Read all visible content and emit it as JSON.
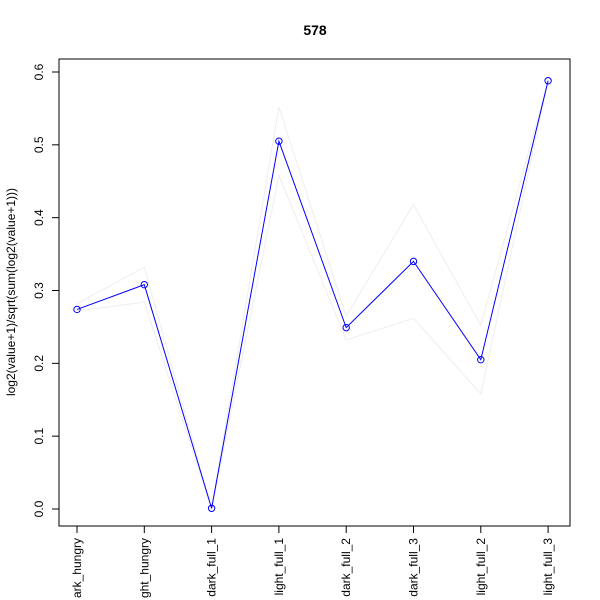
{
  "chart_data": {
    "type": "line",
    "title": "578",
    "xlabel": "",
    "ylabel": "log2(value+1)/sqrt(sum(log2(value+1)))",
    "categories": [
      "dark_hungry",
      "light_hungry",
      "dark_full_1",
      "light_full_1",
      "dark_full_2",
      "dark_full_3",
      "light_full_2",
      "light_full_3"
    ],
    "tick_texts": [
      "ark_hungry",
      "ght_hungry",
      "dark_full_1",
      "light_full_1",
      "dark_full_2",
      "dark_full_3",
      "light_full_2",
      "light_full_3"
    ],
    "ylim": [
      0,
      0.6
    ],
    "yticks": [
      "0.0",
      "0.1",
      "0.2",
      "0.3",
      "0.4",
      "0.5",
      "0.6"
    ],
    "grid": false,
    "series": [
      {
        "values": [
          0.274,
          0.308,
          0.001,
          0.505,
          0.249,
          0.34,
          0.205,
          0.588
        ],
        "color": "#0000ff",
        "markers": "open-circle"
      },
      {
        "values": [
          0.282,
          0.332,
          0.0,
          0.552,
          0.265,
          0.418,
          0.252,
          0.588
        ],
        "color": "#eeeeee",
        "markers": "none"
      },
      {
        "values": [
          0.272,
          0.284,
          0.0,
          0.458,
          0.232,
          0.262,
          0.158,
          0.588
        ],
        "color": "#eeeeee",
        "markers": "none"
      }
    ]
  }
}
